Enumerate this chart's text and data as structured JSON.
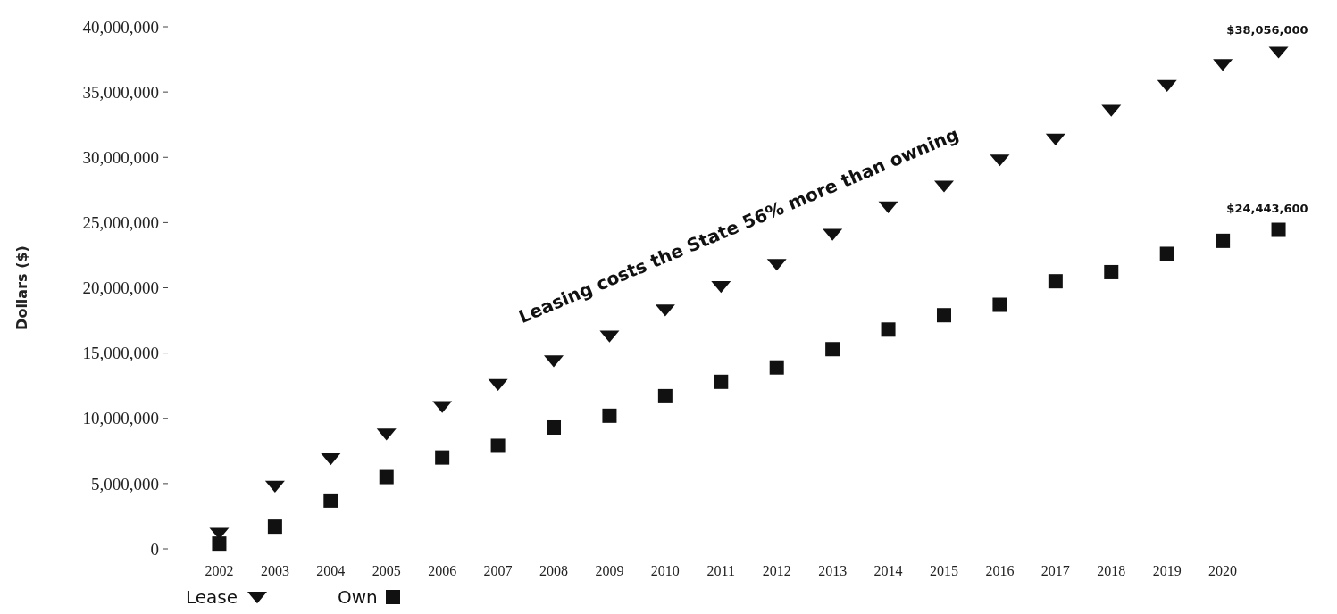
{
  "chart_data": {
    "type": "scatter",
    "ylabel": "Dollars ($)",
    "categories": [
      "2002",
      "2003",
      "2004",
      "2005",
      "2006",
      "2007",
      "2008",
      "2009",
      "2010",
      "2011",
      "2012",
      "2013",
      "2014",
      "2015",
      "2016",
      "2017",
      "2018",
      "2019",
      "2020",
      null
    ],
    "series": [
      {
        "name": "Lease",
        "color": "#111111",
        "marker": "triangle",
        "value_labels": [
          null,
          null,
          null,
          null,
          null,
          null,
          null,
          null,
          null,
          null,
          null,
          null,
          null,
          null,
          null,
          null,
          null,
          null,
          null,
          "$38,056,000"
        ],
        "values": [
          1200000,
          4800000,
          6900000,
          8800000,
          10900000,
          12600000,
          14400000,
          16300000,
          18300000,
          20100000,
          21800000,
          24100000,
          26200000,
          27800000,
          29800000,
          31400000,
          33600000,
          35500000,
          37100000,
          38056000
        ]
      },
      {
        "name": "Own",
        "color": "#111111",
        "marker": "square",
        "value_labels": [
          null,
          null,
          null,
          null,
          null,
          null,
          null,
          null,
          null,
          null,
          null,
          null,
          null,
          null,
          null,
          null,
          null,
          null,
          null,
          "$24,443,600"
        ],
        "values": [
          400000,
          1700000,
          3700000,
          5500000,
          7000000,
          7900000,
          9300000,
          10200000,
          11700000,
          12800000,
          13900000,
          15300000,
          16800000,
          17900000,
          18700000,
          20500000,
          21200000,
          22600000,
          23600000,
          24443600
        ]
      }
    ],
    "ylim": [
      0,
      40000000
    ],
    "yticks": [
      {
        "value": 0,
        "label": "0"
      },
      {
        "value": 5000000,
        "label": "5,000,000"
      },
      {
        "value": 10000000,
        "label": "10,000,000"
      },
      {
        "value": 15000000,
        "label": "15,000,000"
      },
      {
        "value": 20000000,
        "label": "20,000,000"
      },
      {
        "value": 25000000,
        "label": "25,000,000"
      },
      {
        "value": 30000000,
        "label": "30,000,000"
      },
      {
        "value": 35000000,
        "label": "35,000,000"
      },
      {
        "value": 40000000,
        "label": "40,000,000"
      }
    ],
    "annotations": [
      "Leasing costs the State 56% more than owning"
    ],
    "legend": "bottom left",
    "grid": false
  }
}
